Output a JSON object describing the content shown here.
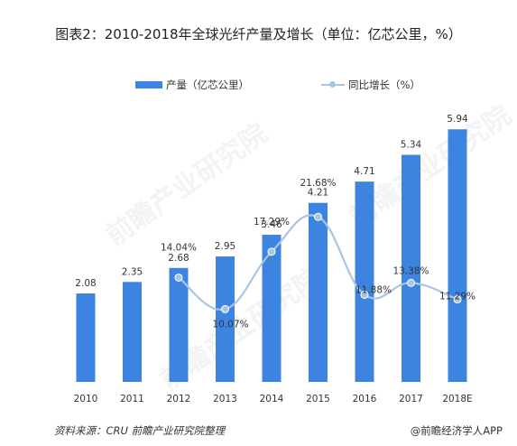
{
  "title": "图表2：2010-2018年全球光纤产量及增长（单位：亿芯公里，%）",
  "watermark": "前瞻产业研究院",
  "source": "资料来源：CRU 前瞻产业研究院整理",
  "credit": "@前瞻经济学人APP",
  "colors": {
    "bar": "#3d84e0",
    "line": "#a9c5e2",
    "marker": "#a9c5e2"
  },
  "chart_data": {
    "type": "bar",
    "categories": [
      "2010",
      "2011",
      "2012",
      "2013",
      "2014",
      "2015",
      "2016",
      "2017",
      "2018E"
    ],
    "series": [
      {
        "name": "产量（亿芯公里）",
        "type": "bar",
        "axis": "left",
        "values": [
          2.08,
          2.35,
          2.68,
          2.95,
          3.46,
          4.21,
          4.71,
          5.34,
          5.94
        ],
        "labels": [
          "2.08",
          "2.35",
          "2.68",
          "2.95",
          "3.46",
          "4.21",
          "4.71",
          "5.34",
          "5.94"
        ]
      },
      {
        "name": "同比增长（%）",
        "type": "line",
        "smooth": true,
        "axis": "right",
        "values": [
          null,
          null,
          14.04,
          10.07,
          17.29,
          21.68,
          11.88,
          13.38,
          11.29
        ],
        "labels": [
          "",
          "",
          "14.04%",
          "10.07%",
          "17.29%",
          "21.68%",
          "11.88%",
          "13.38%",
          "11.29%"
        ]
      }
    ],
    "legend": "top-center",
    "grid": false
  }
}
